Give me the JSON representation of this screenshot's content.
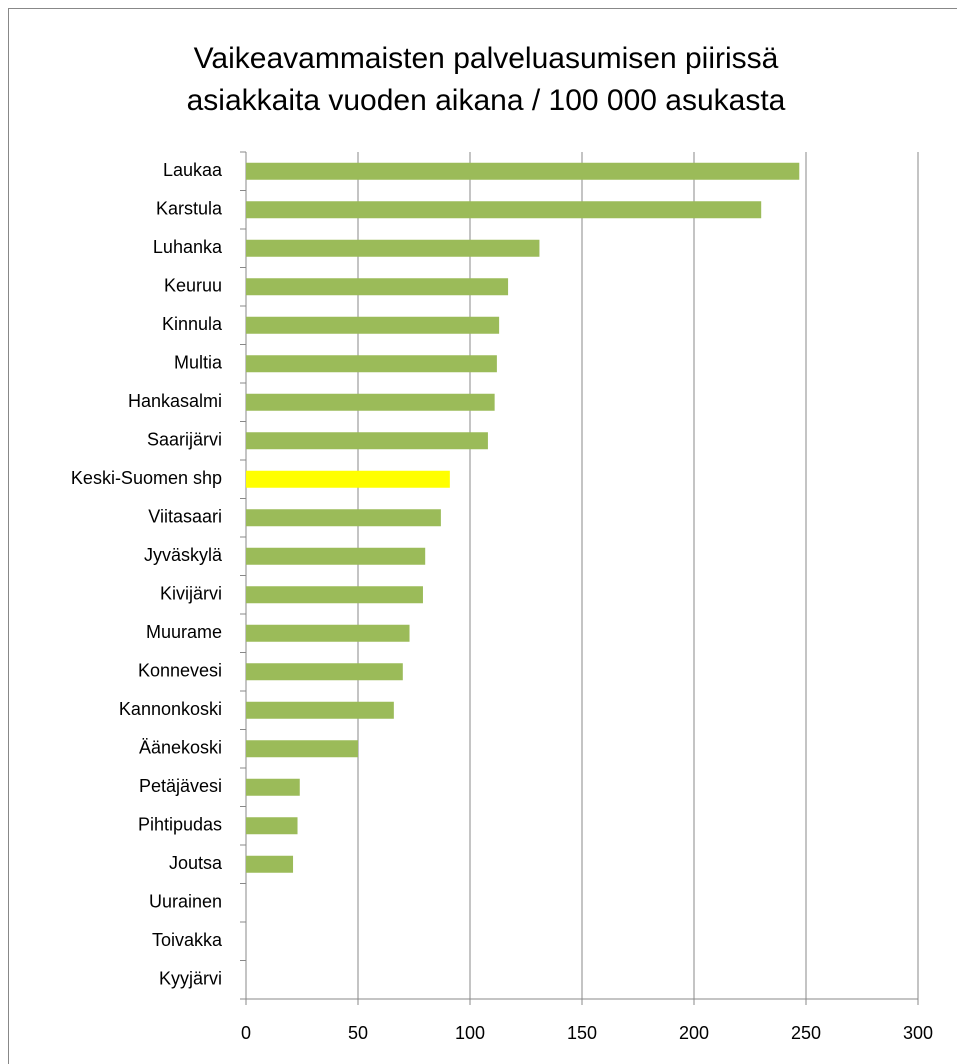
{
  "chart_data": {
    "type": "bar",
    "orientation": "horizontal",
    "title": [
      "Vaikeavammaisten palveluasumisen piirissä",
      "asiakkaita vuoden aikana / 100 000 asukasta"
    ],
    "categories": [
      "Laukaa",
      "Karstula",
      "Luhanka",
      "Keuruu",
      "Kinnula",
      "Multia",
      "Hankasalmi",
      "Saarijärvi",
      "Keski-Suomen shp",
      "Viitasaari",
      "Jyväskylä",
      "Kivijärvi",
      "Muurame",
      "Konnevesi",
      "Kannonkoski",
      "Äänekoski",
      "Petäjävesi",
      "Pihtipudas",
      "Joutsa",
      "Uurainen",
      "Toivakka",
      "Kyyjärvi"
    ],
    "values": [
      247,
      230,
      131,
      117,
      113,
      112,
      111,
      108,
      91,
      87,
      80,
      79,
      73,
      70,
      66,
      50,
      24,
      23,
      21,
      0,
      0,
      0
    ],
    "colors": [
      "#9bbb59",
      "#9bbb59",
      "#9bbb59",
      "#9bbb59",
      "#9bbb59",
      "#9bbb59",
      "#9bbb59",
      "#9bbb59",
      "#ffff00",
      "#9bbb59",
      "#9bbb59",
      "#9bbb59",
      "#9bbb59",
      "#9bbb59",
      "#9bbb59",
      "#9bbb59",
      "#9bbb59",
      "#9bbb59",
      "#9bbb59",
      "#9bbb59",
      "#9bbb59",
      "#9bbb59"
    ],
    "xlim": [
      0,
      300
    ],
    "xticks": [
      0,
      50,
      100,
      150,
      200,
      250,
      300
    ],
    "grid": true
  }
}
